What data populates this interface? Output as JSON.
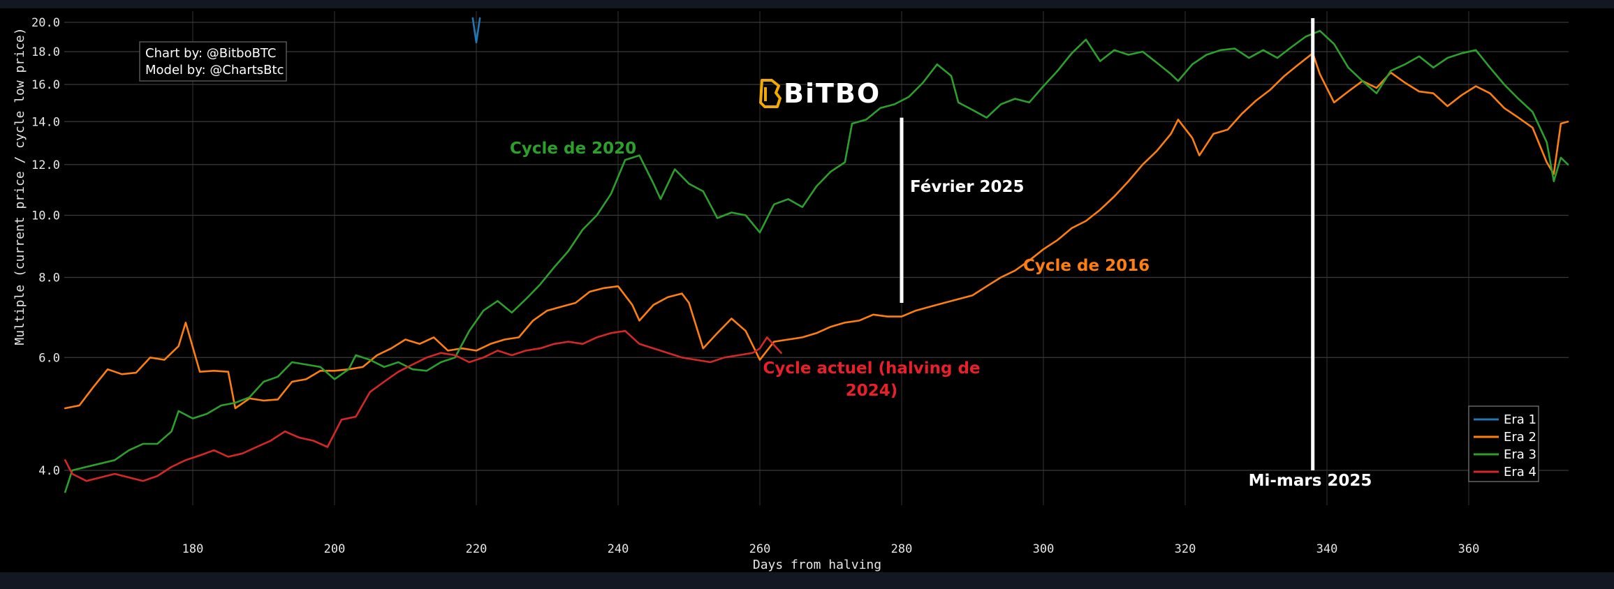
{
  "chart_data": {
    "type": "line",
    "title": "",
    "xlabel": "Days from halving",
    "ylabel": "Multiple (current price / cycle low price)",
    "xlim": [
      162,
      374
    ],
    "ylim": [
      3.4,
      20.2
    ],
    "y_scale": "log",
    "grid": true,
    "legend_position": "bottom-right",
    "x_ticks": [
      "180",
      "200",
      "220",
      "240",
      "260",
      "280",
      "300",
      "320",
      "340",
      "360"
    ],
    "x_tick_values": [
      180,
      200,
      220,
      240,
      260,
      280,
      300,
      320,
      340,
      360
    ],
    "y_ticks": [
      "4.0",
      "6.0",
      "8.0",
      "10.0",
      "12.0",
      "14.0",
      "16.0",
      "18.0",
      "20.0"
    ],
    "y_tick_values": [
      4,
      6,
      8,
      10,
      12,
      14,
      16,
      18,
      20
    ],
    "credits": [
      "Chart by: @BitboBTC",
      "Model by: @ChartsBtc"
    ],
    "brand": "BiTBO",
    "series": [
      {
        "name": "Era 1",
        "color": "#1f77b4",
        "points": [
          [
            219.5,
            20.3
          ],
          [
            220,
            18.6
          ],
          [
            220.5,
            20.3
          ]
        ]
      },
      {
        "name": "Era 2",
        "color": "#ff7f0e",
        "points": [
          [
            162,
            5.0
          ],
          [
            164,
            5.05
          ],
          [
            166,
            5.4
          ],
          [
            168,
            5.75
          ],
          [
            170,
            5.65
          ],
          [
            172,
            5.68
          ],
          [
            174,
            6.0
          ],
          [
            176,
            5.95
          ],
          [
            178,
            6.25
          ],
          [
            179,
            6.8
          ],
          [
            181,
            5.7
          ],
          [
            183,
            5.72
          ],
          [
            185,
            5.7
          ],
          [
            186,
            5.0
          ],
          [
            188,
            5.18
          ],
          [
            190,
            5.14
          ],
          [
            192,
            5.16
          ],
          [
            194,
            5.5
          ],
          [
            196,
            5.55
          ],
          [
            198,
            5.72
          ],
          [
            200,
            5.72
          ],
          [
            202,
            5.75
          ],
          [
            204,
            5.8
          ],
          [
            206,
            6.05
          ],
          [
            208,
            6.2
          ],
          [
            210,
            6.4
          ],
          [
            212,
            6.3
          ],
          [
            214,
            6.45
          ],
          [
            216,
            6.15
          ],
          [
            218,
            6.2
          ],
          [
            220,
            6.15
          ],
          [
            222,
            6.3
          ],
          [
            224,
            6.4
          ],
          [
            226,
            6.45
          ],
          [
            228,
            6.85
          ],
          [
            230,
            7.1
          ],
          [
            232,
            7.2
          ],
          [
            234,
            7.3
          ],
          [
            236,
            7.6
          ],
          [
            238,
            7.7
          ],
          [
            240,
            7.75
          ],
          [
            242,
            7.25
          ],
          [
            243,
            6.85
          ],
          [
            245,
            7.25
          ],
          [
            247,
            7.45
          ],
          [
            249,
            7.55
          ],
          [
            250,
            7.3
          ],
          [
            252,
            6.2
          ],
          [
            254,
            6.55
          ],
          [
            256,
            6.9
          ],
          [
            258,
            6.6
          ],
          [
            260,
            5.95
          ],
          [
            262,
            6.35
          ],
          [
            264,
            6.4
          ],
          [
            266,
            6.45
          ],
          [
            268,
            6.55
          ],
          [
            270,
            6.7
          ],
          [
            272,
            6.8
          ],
          [
            274,
            6.85
          ],
          [
            276,
            7.0
          ],
          [
            278,
            6.95
          ],
          [
            280,
            6.95
          ],
          [
            282,
            7.1
          ],
          [
            284,
            7.2
          ],
          [
            286,
            7.3
          ],
          [
            288,
            7.4
          ],
          [
            290,
            7.5
          ],
          [
            292,
            7.75
          ],
          [
            294,
            8.0
          ],
          [
            296,
            8.2
          ],
          [
            298,
            8.5
          ],
          [
            300,
            8.85
          ],
          [
            302,
            9.15
          ],
          [
            304,
            9.55
          ],
          [
            306,
            9.8
          ],
          [
            308,
            10.2
          ],
          [
            310,
            10.7
          ],
          [
            312,
            11.3
          ],
          [
            314,
            12.0
          ],
          [
            316,
            12.6
          ],
          [
            318,
            13.4
          ],
          [
            319,
            14.1
          ],
          [
            321,
            13.2
          ],
          [
            322,
            12.4
          ],
          [
            324,
            13.4
          ],
          [
            326,
            13.6
          ],
          [
            328,
            14.4
          ],
          [
            330,
            15.1
          ],
          [
            332,
            15.7
          ],
          [
            334,
            16.5
          ],
          [
            336,
            17.2
          ],
          [
            338,
            17.9
          ],
          [
            339,
            16.6
          ],
          [
            341,
            15.0
          ],
          [
            343,
            15.6
          ],
          [
            345,
            16.2
          ],
          [
            347,
            15.8
          ],
          [
            349,
            16.7
          ],
          [
            351,
            16.1
          ],
          [
            353,
            15.6
          ],
          [
            355,
            15.5
          ],
          [
            357,
            14.8
          ],
          [
            359,
            15.4
          ],
          [
            361,
            15.9
          ],
          [
            363,
            15.5
          ],
          [
            365,
            14.7
          ],
          [
            367,
            14.2
          ],
          [
            369,
            13.7
          ],
          [
            371,
            12.1
          ],
          [
            372,
            11.6
          ],
          [
            373,
            13.9
          ],
          [
            374,
            14.0
          ]
        ]
      },
      {
        "name": "Era 3",
        "color": "#2ca02c",
        "points": [
          [
            162,
            3.7
          ],
          [
            163,
            4.0
          ],
          [
            165,
            4.05
          ],
          [
            167,
            4.1
          ],
          [
            169,
            4.15
          ],
          [
            171,
            4.3
          ],
          [
            173,
            4.4
          ],
          [
            175,
            4.4
          ],
          [
            177,
            4.6
          ],
          [
            178,
            4.95
          ],
          [
            180,
            4.82
          ],
          [
            182,
            4.9
          ],
          [
            184,
            5.05
          ],
          [
            186,
            5.1
          ],
          [
            188,
            5.2
          ],
          [
            190,
            5.5
          ],
          [
            192,
            5.6
          ],
          [
            194,
            5.9
          ],
          [
            196,
            5.85
          ],
          [
            198,
            5.8
          ],
          [
            200,
            5.55
          ],
          [
            202,
            5.75
          ],
          [
            203,
            6.05
          ],
          [
            205,
            5.95
          ],
          [
            207,
            5.8
          ],
          [
            209,
            5.9
          ],
          [
            211,
            5.75
          ],
          [
            213,
            5.72
          ],
          [
            215,
            5.9
          ],
          [
            217,
            6.0
          ],
          [
            219,
            6.6
          ],
          [
            221,
            7.1
          ],
          [
            223,
            7.35
          ],
          [
            225,
            7.05
          ],
          [
            227,
            7.4
          ],
          [
            229,
            7.8
          ],
          [
            231,
            8.3
          ],
          [
            233,
            8.8
          ],
          [
            235,
            9.5
          ],
          [
            237,
            10.0
          ],
          [
            239,
            10.8
          ],
          [
            241,
            12.2
          ],
          [
            243,
            12.4
          ],
          [
            245,
            11.2
          ],
          [
            246,
            10.6
          ],
          [
            248,
            11.8
          ],
          [
            250,
            11.2
          ],
          [
            252,
            10.9
          ],
          [
            254,
            9.9
          ],
          [
            256,
            10.1
          ],
          [
            258,
            10.0
          ],
          [
            260,
            9.4
          ],
          [
            262,
            10.4
          ],
          [
            264,
            10.6
          ],
          [
            266,
            10.3
          ],
          [
            268,
            11.1
          ],
          [
            270,
            11.7
          ],
          [
            272,
            12.1
          ],
          [
            273,
            13.9
          ],
          [
            275,
            14.1
          ],
          [
            277,
            14.7
          ],
          [
            279,
            14.9
          ],
          [
            281,
            15.3
          ],
          [
            283,
            16.1
          ],
          [
            285,
            17.2
          ],
          [
            287,
            16.5
          ],
          [
            288,
            15.0
          ],
          [
            290,
            14.6
          ],
          [
            292,
            14.2
          ],
          [
            294,
            14.9
          ],
          [
            296,
            15.2
          ],
          [
            298,
            15.0
          ],
          [
            300,
            15.9
          ],
          [
            302,
            16.8
          ],
          [
            304,
            17.9
          ],
          [
            306,
            18.8
          ],
          [
            308,
            17.4
          ],
          [
            310,
            18.1
          ],
          [
            312,
            17.8
          ],
          [
            314,
            18.0
          ],
          [
            316,
            17.3
          ],
          [
            318,
            16.6
          ],
          [
            319,
            16.2
          ],
          [
            321,
            17.2
          ],
          [
            323,
            17.8
          ],
          [
            325,
            18.1
          ],
          [
            327,
            18.2
          ],
          [
            329,
            17.6
          ],
          [
            331,
            18.1
          ],
          [
            333,
            17.6
          ],
          [
            335,
            18.3
          ],
          [
            337,
            19.0
          ],
          [
            339,
            19.4
          ],
          [
            341,
            18.5
          ],
          [
            343,
            17.0
          ],
          [
            345,
            16.2
          ],
          [
            347,
            15.5
          ],
          [
            349,
            16.8
          ],
          [
            351,
            17.2
          ],
          [
            353,
            17.7
          ],
          [
            355,
            17.0
          ],
          [
            357,
            17.6
          ],
          [
            359,
            17.9
          ],
          [
            361,
            18.1
          ],
          [
            363,
            17.0
          ],
          [
            365,
            16.0
          ],
          [
            367,
            15.2
          ],
          [
            369,
            14.5
          ],
          [
            371,
            13.0
          ],
          [
            372,
            11.3
          ],
          [
            373,
            12.3
          ],
          [
            374,
            12.0
          ]
        ]
      },
      {
        "name": "Era 4",
        "color": "#d62728",
        "points": [
          [
            162,
            4.15
          ],
          [
            163,
            3.95
          ],
          [
            165,
            3.85
          ],
          [
            167,
            3.9
          ],
          [
            169,
            3.95
          ],
          [
            171,
            3.9
          ],
          [
            173,
            3.85
          ],
          [
            175,
            3.92
          ],
          [
            177,
            4.05
          ],
          [
            179,
            4.15
          ],
          [
            181,
            4.22
          ],
          [
            183,
            4.3
          ],
          [
            185,
            4.2
          ],
          [
            187,
            4.25
          ],
          [
            189,
            4.35
          ],
          [
            191,
            4.45
          ],
          [
            193,
            4.6
          ],
          [
            195,
            4.5
          ],
          [
            197,
            4.45
          ],
          [
            199,
            4.35
          ],
          [
            201,
            4.8
          ],
          [
            203,
            4.85
          ],
          [
            205,
            5.3
          ],
          [
            207,
            5.5
          ],
          [
            209,
            5.7
          ],
          [
            211,
            5.85
          ],
          [
            213,
            6.0
          ],
          [
            215,
            6.1
          ],
          [
            217,
            6.05
          ],
          [
            219,
            5.9
          ],
          [
            221,
            6.0
          ],
          [
            223,
            6.15
          ],
          [
            225,
            6.05
          ],
          [
            227,
            6.15
          ],
          [
            229,
            6.2
          ],
          [
            231,
            6.3
          ],
          [
            233,
            6.35
          ],
          [
            235,
            6.3
          ],
          [
            237,
            6.45
          ],
          [
            239,
            6.55
          ],
          [
            241,
            6.6
          ],
          [
            243,
            6.3
          ],
          [
            245,
            6.2
          ],
          [
            247,
            6.1
          ],
          [
            249,
            6.0
          ],
          [
            251,
            5.95
          ],
          [
            253,
            5.9
          ],
          [
            255,
            6.0
          ],
          [
            257,
            6.05
          ],
          [
            259,
            6.1
          ],
          [
            260,
            6.2
          ],
          [
            261,
            6.45
          ],
          [
            263,
            6.1
          ]
        ]
      }
    ],
    "annotations": [
      {
        "text": "Cycle de 2020",
        "color": "#2ca02c"
      },
      {
        "text": "Février 2025",
        "color": "#ffffff"
      },
      {
        "text": "Cycle de 2016",
        "color": "#ff7f0e"
      },
      {
        "text": "Cycle actuel (halving de",
        "color": "#e8202a"
      },
      {
        "text": "2024)",
        "color": "#e8202a"
      },
      {
        "text": "Mi-mars 2025",
        "color": "#ffffff"
      }
    ],
    "markers": [
      {
        "x": 280,
        "y_from": 7.3,
        "y_to": 14.2
      },
      {
        "x": 338,
        "y_from": 4.0,
        "y_to": 20.3
      }
    ]
  }
}
